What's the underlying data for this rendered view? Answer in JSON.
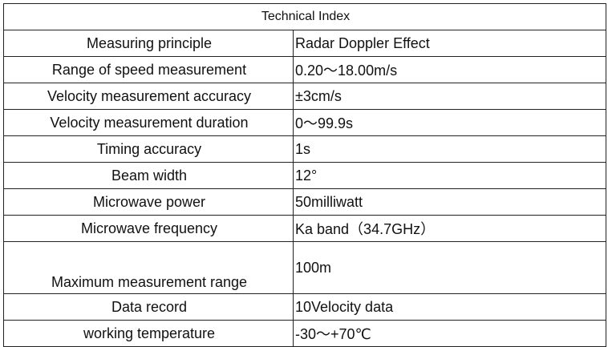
{
  "table": {
    "title": "Technical Index",
    "rows": [
      {
        "parameter": "Measuring principle",
        "value": "Radar Doppler Effect"
      },
      {
        "parameter": "Range of speed measurement",
        "value": "0.20～18.00m/s"
      },
      {
        "parameter": "Velocity measurement accuracy",
        "value": "±3cm/s"
      },
      {
        "parameter": "Velocity measurement duration",
        "value": "0～99.9s"
      },
      {
        "parameter": "Timing accuracy",
        "value": "1s"
      },
      {
        "parameter": "Beam width",
        "value": "12°"
      },
      {
        "parameter": "Microwave power",
        "value": "50milliwatt"
      },
      {
        "parameter": "Microwave frequency",
        "value": "Ka band（34.7GHz）"
      },
      {
        "parameter": "Maximum measurement range",
        "value": "100m"
      },
      {
        "parameter": "Data record",
        "value": "10Velocity data"
      },
      {
        "parameter": "working temperature",
        "value": "-30～+70℃"
      }
    ]
  }
}
